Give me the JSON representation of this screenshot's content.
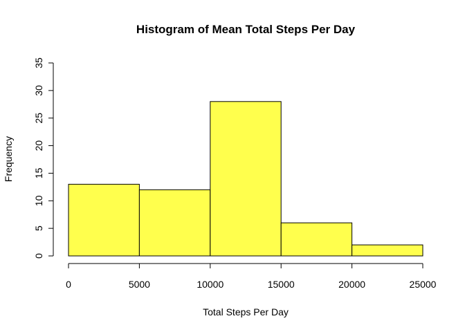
{
  "chart_data": {
    "type": "bar",
    "title": "Histogram of Mean Total Steps Per Day",
    "xlabel": "Total Steps Per Day",
    "ylabel": "Frequency",
    "bins": [
      {
        "from": 0,
        "to": 5000,
        "count": 13
      },
      {
        "from": 5000,
        "to": 10000,
        "count": 12
      },
      {
        "from": 10000,
        "to": 15000,
        "count": 28
      },
      {
        "from": 15000,
        "to": 20000,
        "count": 6
      },
      {
        "from": 20000,
        "to": 25000,
        "count": 2
      }
    ],
    "xlim": [
      0,
      25000
    ],
    "ylim": [
      0,
      35
    ],
    "x_ticks": [
      0,
      5000,
      10000,
      15000,
      20000,
      25000
    ],
    "y_ticks": [
      0,
      5,
      10,
      15,
      20,
      25,
      30,
      35
    ],
    "bar_color": "#ffff4d",
    "grid": false,
    "legend": "none"
  }
}
